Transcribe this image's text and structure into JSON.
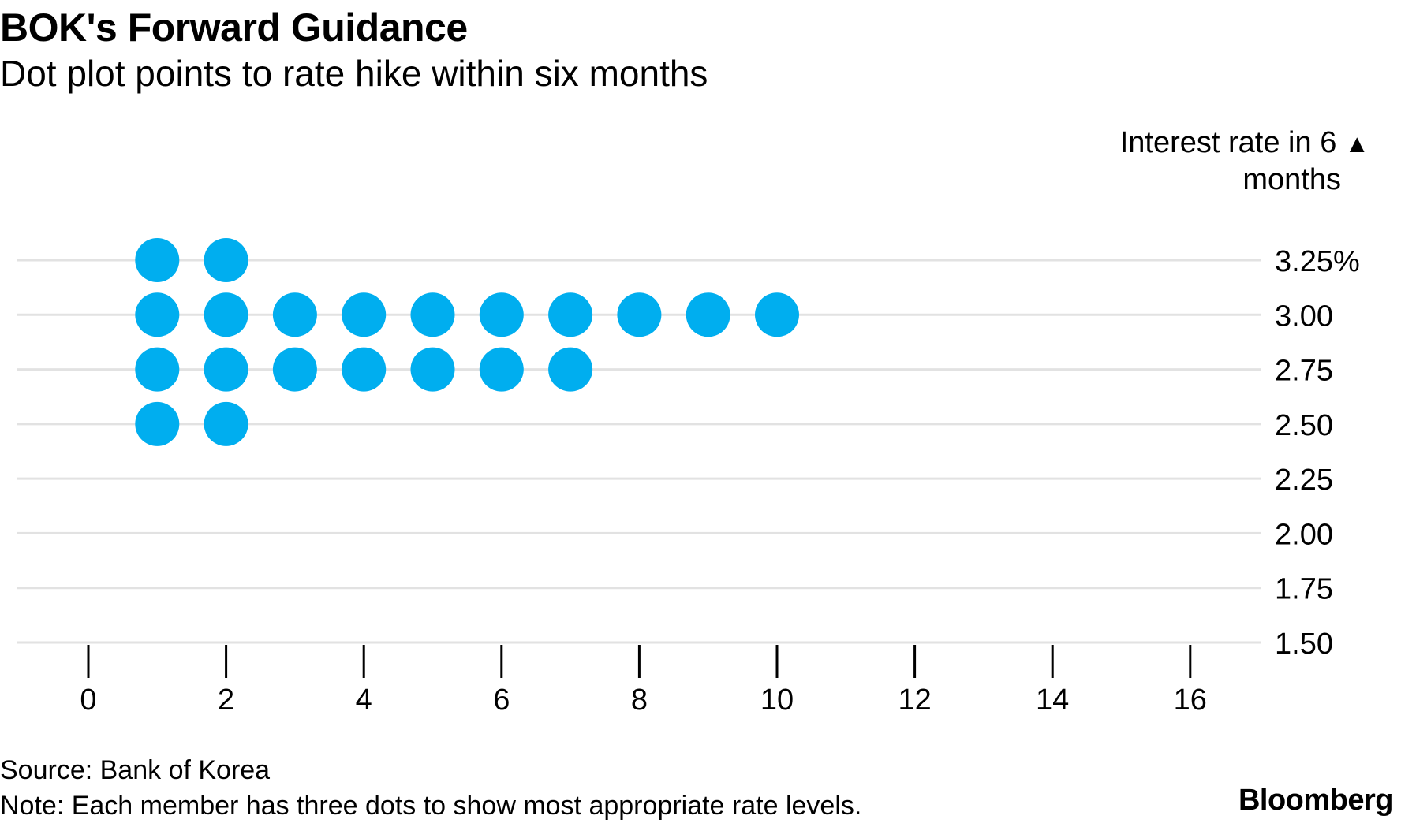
{
  "colors": {
    "dot": "#00aeef",
    "gridline": "#e2e2e2",
    "tick": "#000000",
    "text": "#000000"
  },
  "header": {
    "title": "BOK's Forward Guidance",
    "subtitle": "Dot plot points to rate hike within six months"
  },
  "y_axis": {
    "label_line1": "Interest rate in 6",
    "label_line2": "months",
    "arrow_glyph": "▲"
  },
  "footer": {
    "source": "Source: Bank of Korea",
    "note": "Note: Each member has three dots to show most appropriate rate levels.",
    "logo": "Bloomberg"
  },
  "chart_data": {
    "type": "scatter",
    "xlim": [
      0,
      17
    ],
    "ylim": [
      1.5,
      3.25
    ],
    "x_ticks": [
      0,
      2,
      4,
      6,
      8,
      10,
      12,
      14,
      16
    ],
    "x_tick_labels": [
      "0",
      "2",
      "4",
      "6",
      "8",
      "10",
      "12",
      "14",
      "16"
    ],
    "y_ticks": [
      3.25,
      3.0,
      2.75,
      2.5,
      2.25,
      2.0,
      1.75,
      1.5
    ],
    "y_tick_labels": [
      "3.25%",
      "3.00",
      "2.75",
      "2.50",
      "2.25",
      "2.00",
      "1.75",
      "1.50"
    ],
    "grid": true,
    "rows": [
      {
        "rate": 3.25,
        "dots": 2
      },
      {
        "rate": 3.0,
        "dots": 10
      },
      {
        "rate": 2.75,
        "dots": 7
      },
      {
        "rate": 2.5,
        "dots": 2
      },
      {
        "rate": 2.25,
        "dots": 0
      },
      {
        "rate": 2.0,
        "dots": 0
      },
      {
        "rate": 1.75,
        "dots": 0
      },
      {
        "rate": 1.5,
        "dots": 0
      }
    ]
  }
}
